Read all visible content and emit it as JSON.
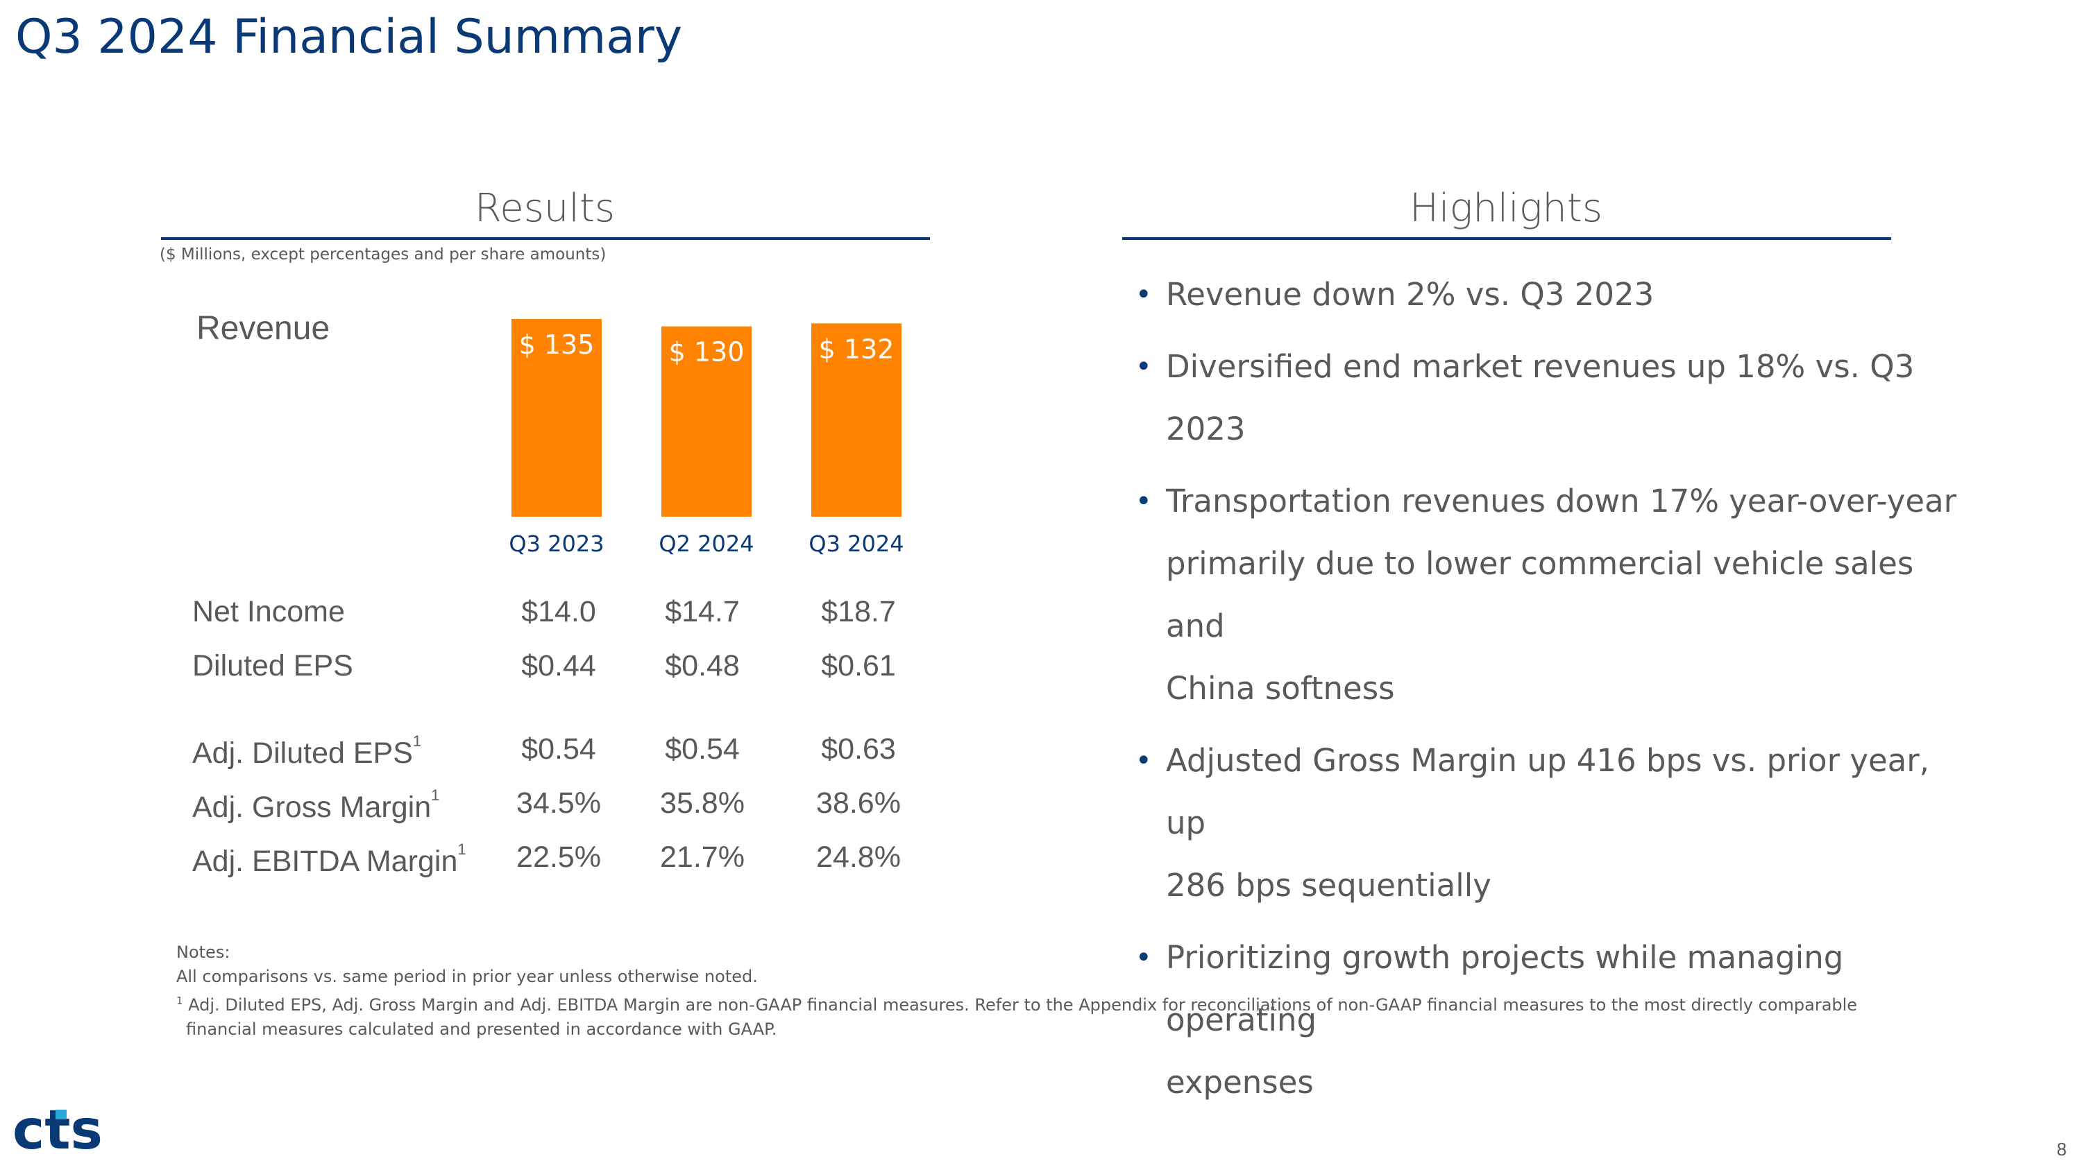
{
  "title": "Q3 2024 Financial Summary",
  "results": {
    "heading": "Results",
    "units_note": "($ Millions, except percentages and per share amounts)",
    "revenue_label": "Revenue"
  },
  "chart_data": {
    "type": "bar",
    "title": "Revenue",
    "categories": [
      "Q3 2023",
      "Q2 2024",
      "Q3 2024"
    ],
    "values": [
      135,
      130,
      132
    ],
    "data_labels": [
      "$ 135",
      "$ 130",
      "$ 132"
    ],
    "bar_color": "#ff8200",
    "label_color": "#ffffff",
    "category_color": "#0a3a75",
    "xlabel": "",
    "ylabel": "",
    "grid": false
  },
  "table": {
    "rows": [
      {
        "label": "Net Income",
        "sup": "",
        "values": [
          "$14.0",
          "$14.7",
          "$18.7"
        ]
      },
      {
        "label": "Diluted EPS",
        "sup": "",
        "values": [
          "$0.44",
          "$0.48",
          "$0.61"
        ]
      },
      {
        "label": "Adj. Diluted EPS",
        "sup": "1",
        "values": [
          "$0.54",
          "$0.54",
          "$0.63"
        ]
      },
      {
        "label": "Adj. Gross Margin",
        "sup": "1",
        "values": [
          "34.5%",
          "35.8%",
          "38.6%"
        ]
      },
      {
        "label": "Adj. EBITDA Margin",
        "sup": "1",
        "values": [
          "22.5%",
          "21.7%",
          "24.8%"
        ]
      }
    ]
  },
  "highlights": {
    "heading": "Highlights",
    "bullet": "•",
    "items": [
      [
        "Revenue down 2% vs. Q3 2023"
      ],
      [
        "Diversified end market revenues up 18% vs. Q3 2023"
      ],
      [
        "Transportation revenues down 17% year-over-year",
        "primarily due to lower commercial vehicle sales and",
        "China softness"
      ],
      [
        "Adjusted Gross Margin up 416 bps vs. prior year, up",
        "286 bps sequentially"
      ],
      [
        "Prioritizing growth projects while managing operating",
        "expenses"
      ]
    ]
  },
  "notes": {
    "heading": "Notes:",
    "line1": "All comparisons vs. same period in prior year unless otherwise noted.",
    "footnote_mark": "1",
    "line2": " Adj. Diluted EPS, Adj. Gross Margin and Adj. EBITDA Margin are non-GAAP financial measures. Refer to the Appendix for reconciliations of non-GAAP financial measures to the most directly comparable",
    "line3": "financial measures calculated and presented in accordance with GAAP."
  },
  "logo": {
    "text": "cts",
    "color_primary": "#0a3a75",
    "color_accent": "#2aa6d8"
  },
  "page_number": "8",
  "colors": {
    "brand_navy": "#0a3a75",
    "accent_orange": "#ff8200",
    "body_gray": "#595959"
  }
}
